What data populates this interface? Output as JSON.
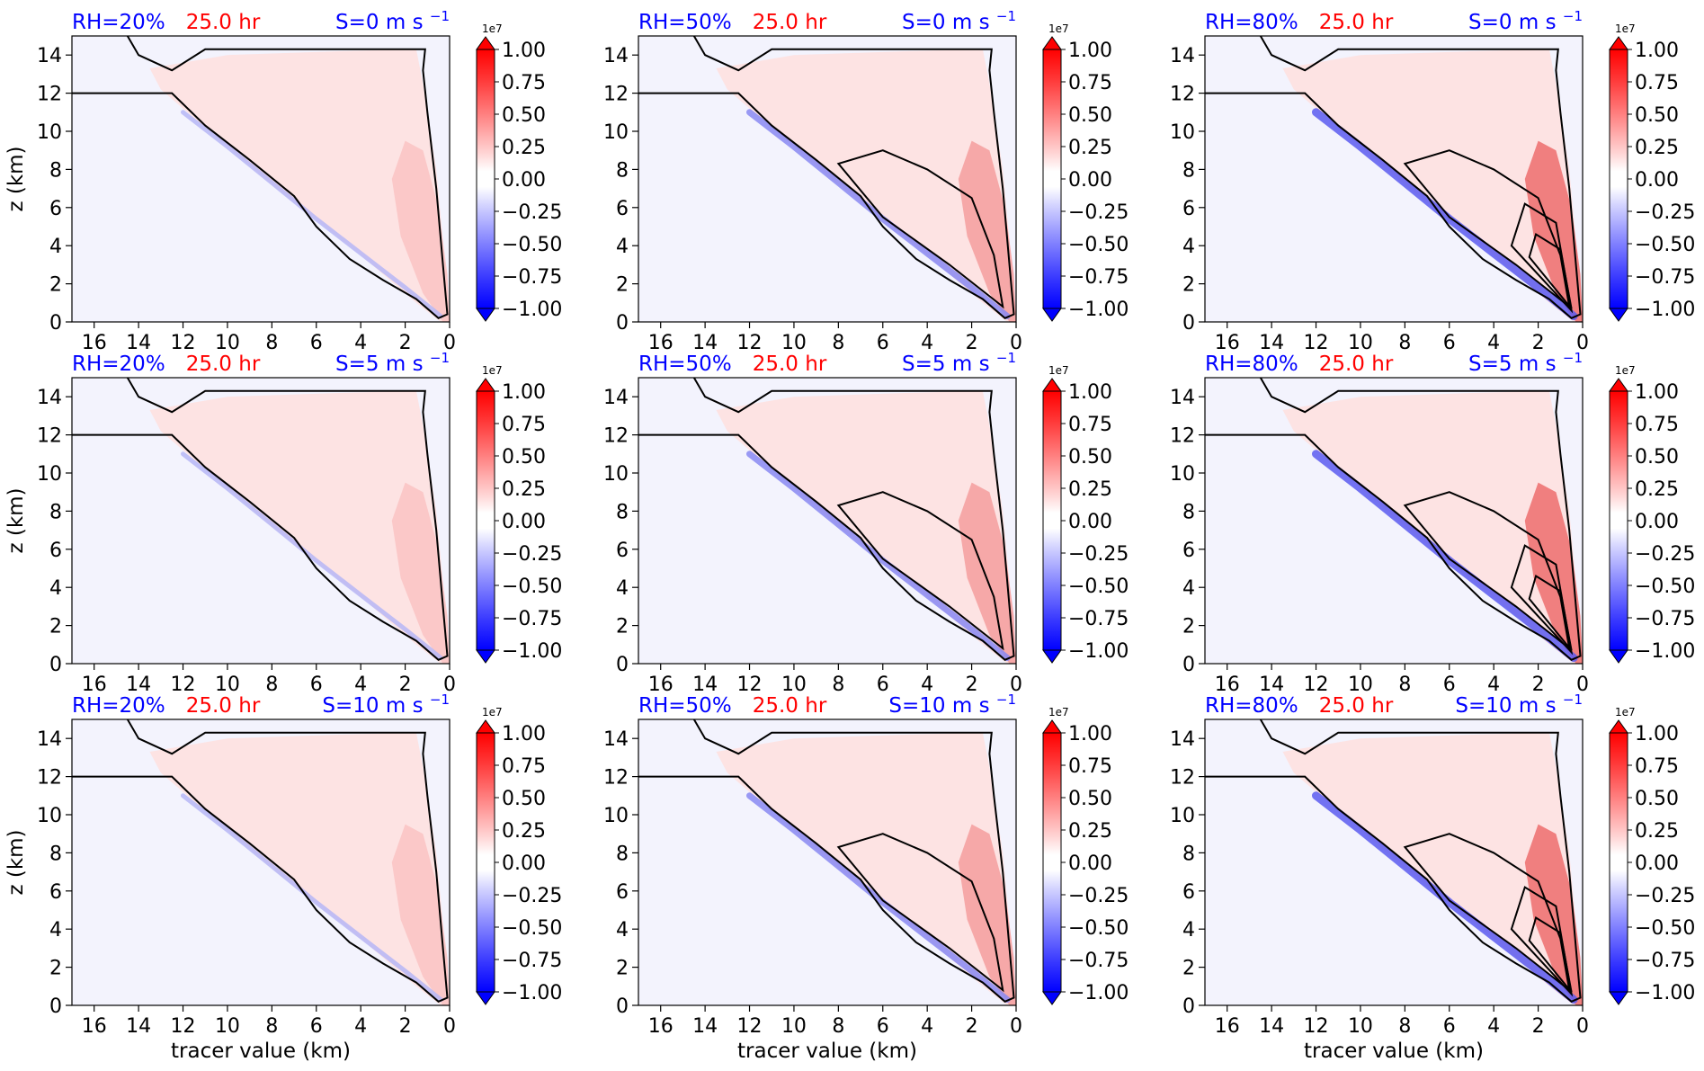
{
  "chart_data": {
    "type": "contour",
    "layout": {
      "rows": 3,
      "cols": 3
    },
    "xlabel": "tracer value (km)",
    "ylabel": "z (km)",
    "xlim": [
      17,
      0
    ],
    "ylim": [
      0,
      15
    ],
    "x_ticks": [
      "16",
      "14",
      "12",
      "10",
      "8",
      "6",
      "4",
      "2",
      "0"
    ],
    "y_ticks": [
      "0",
      "2",
      "4",
      "6",
      "8",
      "10",
      "12",
      "14"
    ],
    "colorbar": {
      "multiplier": "1e7",
      "ticks": [
        "1.00",
        "0.75",
        "0.50",
        "0.25",
        "0.00",
        "−0.25",
        "−0.50",
        "−0.75",
        "−1.00"
      ],
      "cmap": "bwr",
      "extend": "both"
    },
    "colors": {
      "rh_label": "#0000ff",
      "time_label": "#ff0000",
      "shear_label": "#0000ff",
      "contour": "#000000"
    },
    "panels": [
      {
        "rh": "RH=20%",
        "time": "25.0 hr",
        "shear_base": "S=0 m s",
        "shear_exp": "−1",
        "rh_value": 20,
        "shear_value": 0
      },
      {
        "rh": "RH=50%",
        "time": "25.0 hr",
        "shear_base": "S=0 m s",
        "shear_exp": "−1",
        "rh_value": 50,
        "shear_value": 0
      },
      {
        "rh": "RH=80%",
        "time": "25.0 hr",
        "shear_base": "S=0 m s",
        "shear_exp": "−1",
        "rh_value": 80,
        "shear_value": 0
      },
      {
        "rh": "RH=20%",
        "time": "25.0 hr",
        "shear_base": "S=5 m s",
        "shear_exp": "−1",
        "rh_value": 20,
        "shear_value": 5
      },
      {
        "rh": "RH=50%",
        "time": "25.0 hr",
        "shear_base": "S=5 m s",
        "shear_exp": "−1",
        "rh_value": 50,
        "shear_value": 5
      },
      {
        "rh": "RH=80%",
        "time": "25.0 hr",
        "shear_base": "S=5 m s",
        "shear_exp": "−1",
        "rh_value": 80,
        "shear_value": 5
      },
      {
        "rh": "RH=20%",
        "time": "25.0 hr",
        "shear_base": "S=10 m s",
        "shear_exp": "−1",
        "rh_value": 20,
        "shear_value": 10
      },
      {
        "rh": "RH=50%",
        "time": "25.0 hr",
        "shear_base": "S=10 m s",
        "shear_exp": "−1",
        "rh_value": 50,
        "shear_value": 10
      },
      {
        "rh": "RH=80%",
        "time": "25.0 hr",
        "shear_base": "S=10 m s",
        "shear_exp": "−1",
        "rh_value": 80,
        "shear_value": 10
      }
    ]
  }
}
